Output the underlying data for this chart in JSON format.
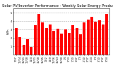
{
  "title": "Solar PV/Inverter Performance - Weekly Solar Energy Production",
  "ylabel": "kWh",
  "values": [
    3.2,
    2.1,
    1.2,
    1.8,
    0.9,
    3.5,
    4.8,
    3.8,
    3.2,
    3.6,
    2.8,
    3.1,
    2.5,
    3.0,
    2.6,
    3.5,
    3.2,
    2.4,
    3.8,
    4.2,
    4.5,
    3.9,
    4.1,
    3.6,
    4.8
  ],
  "bar_color": "#ff0000",
  "bg_color": "#ffffff",
  "grid_color": "#aaaaaa",
  "ylim": [
    0,
    5.5
  ],
  "yticks": [
    1,
    2,
    3,
    4,
    5
  ],
  "title_fontsize": 3.8,
  "axis_fontsize": 2.8,
  "tick_fontsize": 2.5,
  "labels": [
    "10/7",
    "10/14",
    "10/21",
    "10/28",
    "11/4",
    "11/11",
    "11/18",
    "11/25",
    "12/2",
    "12/9",
    "12/16",
    "12/23",
    "12/30",
    "1/6",
    "1/13",
    "1/20",
    "1/27",
    "2/3",
    "2/10",
    "2/17",
    "2/24",
    "3/3",
    "3/10",
    "3/17",
    "3/24"
  ]
}
